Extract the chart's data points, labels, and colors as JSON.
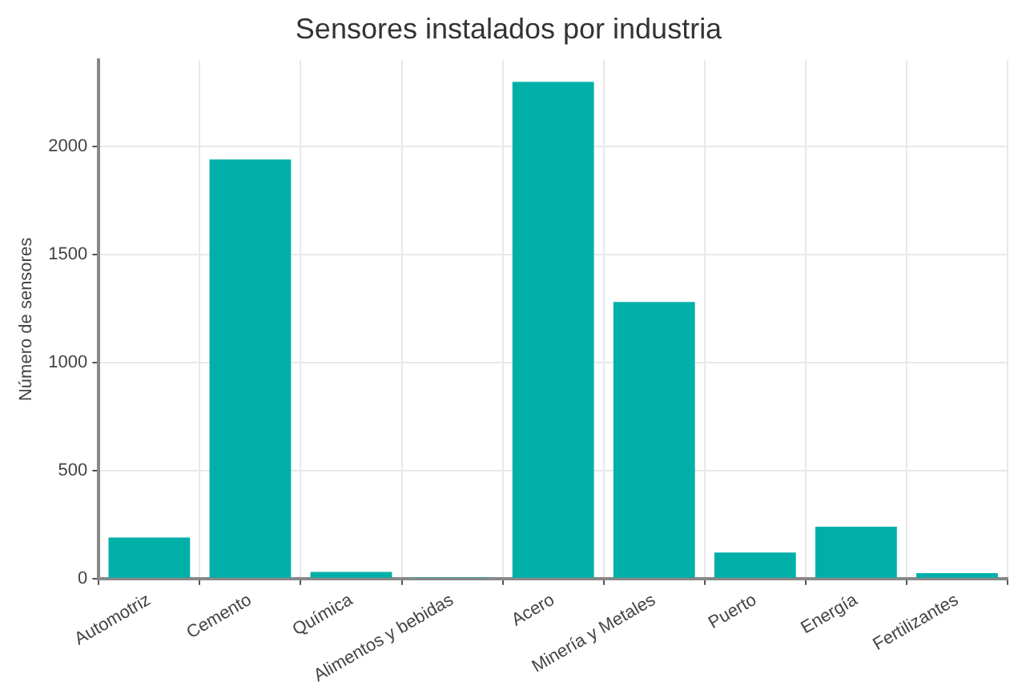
{
  "chart_data": {
    "type": "bar",
    "title": "Sensores instalados por industria",
    "ylabel": "Número de sensores",
    "categories": [
      "Automotriz",
      "Cemento",
      "Química",
      "Alimentos y bebidas",
      "Acero",
      "Minería y Metales",
      "Puerto",
      "Energía",
      "Fertilizantes"
    ],
    "values": [
      190,
      1940,
      30,
      5,
      2300,
      1280,
      120,
      240,
      25
    ],
    "color": "#00b0a8",
    "ylim": [
      0,
      2400
    ],
    "yticks": [
      0,
      500,
      1000,
      1500,
      2000
    ],
    "grid": true
  }
}
